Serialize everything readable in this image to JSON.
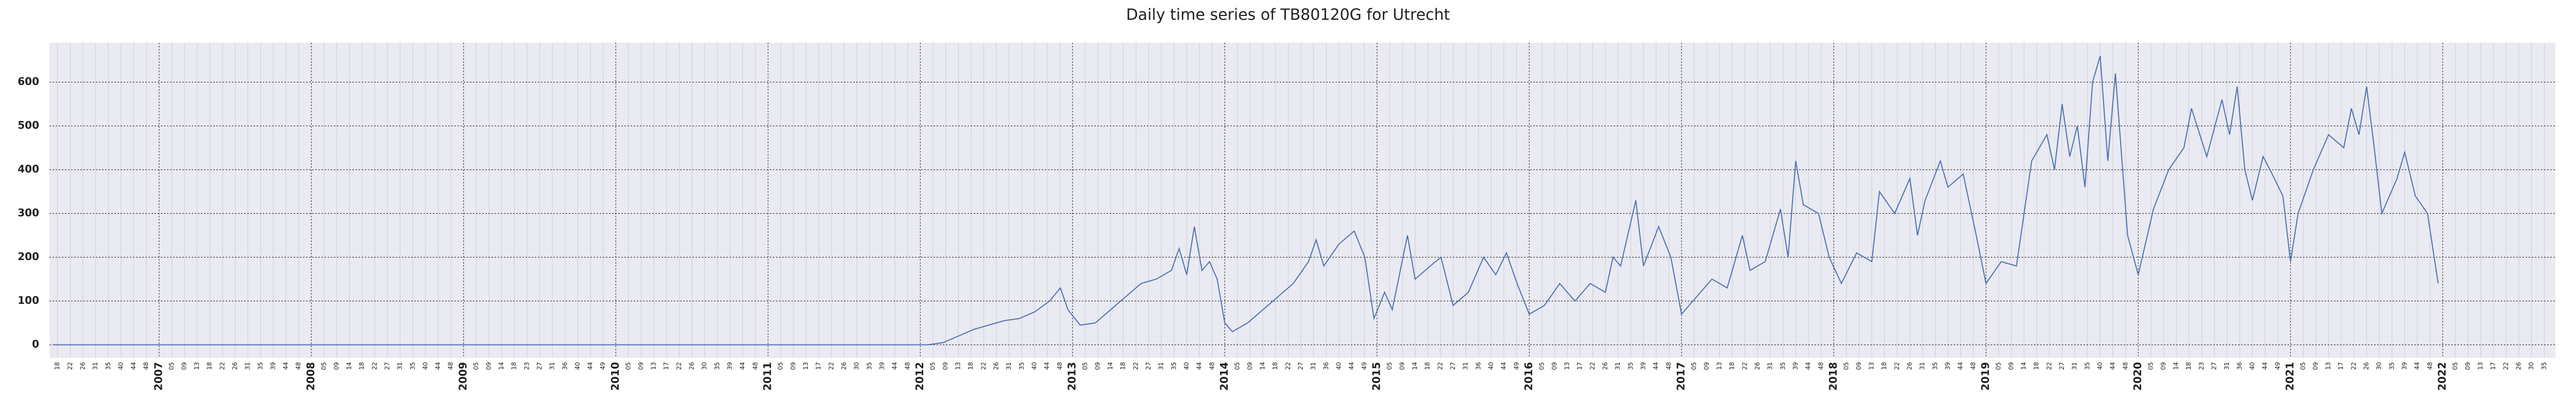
{
  "chart_data": {
    "type": "line",
    "title": "Daily time series of TB80120G for Utrecht",
    "x": [
      2006.3,
      2012.05,
      2012.15,
      2012.25,
      2012.35,
      2012.45,
      2012.55,
      2012.65,
      2012.75,
      2012.85,
      2012.92,
      2012.97,
      2013.05,
      2013.15,
      2013.25,
      2013.35,
      2013.45,
      2013.55,
      2013.65,
      2013.7,
      2013.75,
      2013.8,
      2013.85,
      2013.9,
      2013.95,
      2014.0,
      2014.05,
      2014.15,
      2014.25,
      2014.35,
      2014.45,
      2014.55,
      2014.6,
      2014.65,
      2014.75,
      2014.85,
      2014.92,
      2014.98,
      2015.05,
      2015.1,
      2015.2,
      2015.25,
      2015.35,
      2015.42,
      2015.5,
      2015.6,
      2015.7,
      2015.78,
      2015.85,
      2015.92,
      2016.0,
      2016.1,
      2016.2,
      2016.3,
      2016.4,
      2016.5,
      2016.55,
      2016.6,
      2016.7,
      2016.75,
      2016.85,
      2016.93,
      2017.0,
      2017.1,
      2017.2,
      2017.3,
      2017.4,
      2017.45,
      2017.55,
      2017.65,
      2017.7,
      2017.75,
      2017.8,
      2017.9,
      2017.97,
      2018.05,
      2018.15,
      2018.25,
      2018.3,
      2018.4,
      2018.5,
      2018.55,
      2018.6,
      2018.7,
      2018.75,
      2018.85,
      2018.93,
      2019.0,
      2019.1,
      2019.2,
      2019.3,
      2019.4,
      2019.45,
      2019.5,
      2019.55,
      2019.6,
      2019.65,
      2019.7,
      2019.75,
      2019.8,
      2019.85,
      2019.93,
      2020.0,
      2020.1,
      2020.2,
      2020.3,
      2020.35,
      2020.45,
      2020.55,
      2020.6,
      2020.65,
      2020.7,
      2020.75,
      2020.82,
      2020.88,
      2020.95,
      2021.0,
      2021.05,
      2021.15,
      2021.25,
      2021.35,
      2021.4,
      2021.45,
      2021.5,
      2021.55,
      2021.6,
      2021.7,
      2021.75,
      2021.82,
      2021.9,
      2021.97
    ],
    "series": [
      {
        "color": "#4c72b0",
        "values": [
          0,
          0,
          5,
          20,
          35,
          45,
          55,
          60,
          75,
          100,
          130,
          80,
          45,
          50,
          80,
          110,
          140,
          150,
          170,
          220,
          160,
          270,
          170,
          190,
          150,
          50,
          30,
          50,
          80,
          110,
          140,
          190,
          240,
          180,
          230,
          260,
          200,
          60,
          120,
          80,
          250,
          150,
          180,
          200,
          90,
          120,
          200,
          160,
          210,
          140,
          70,
          90,
          140,
          100,
          140,
          120,
          200,
          180,
          330,
          180,
          270,
          200,
          70,
          110,
          150,
          130,
          250,
          170,
          190,
          310,
          200,
          420,
          320,
          300,
          200,
          140,
          210,
          190,
          350,
          300,
          380,
          250,
          330,
          420,
          360,
          390,
          260,
          140,
          190,
          180,
          420,
          480,
          400,
          550,
          430,
          500,
          360,
          600,
          660,
          420,
          620,
          250,
          160,
          310,
          400,
          450,
          540,
          430,
          560,
          480,
          590,
          400,
          330,
          430,
          390,
          340,
          190,
          300,
          400,
          480,
          450,
          540,
          480,
          590,
          450,
          300,
          380,
          440,
          340,
          300,
          140
        ]
      }
    ],
    "xlim": [
      2006.28,
      2022.74
    ],
    "ylim": [
      -30,
      690
    ],
    "yticks": [
      0,
      100,
      200,
      300,
      400,
      500,
      600
    ],
    "xticks": [
      2007,
      2008,
      2009,
      2010,
      2011,
      2012,
      2013,
      2014,
      2015,
      2016,
      2017,
      2018,
      2019,
      2020,
      2021,
      2022
    ],
    "xminorticks": [
      {
        "value": 2006.333,
        "label": "18"
      },
      {
        "value": 2006.417,
        "label": "22"
      },
      {
        "value": 2006.5,
        "label": "26"
      },
      {
        "value": 2006.583,
        "label": "31"
      },
      {
        "value": 2006.667,
        "label": "35"
      },
      {
        "value": 2006.75,
        "label": "40"
      },
      {
        "value": 2006.833,
        "label": "44"
      },
      {
        "value": 2006.917,
        "label": "48"
      },
      {
        "value": 2007.083,
        "label": "05"
      },
      {
        "value": 2007.167,
        "label": "09"
      },
      {
        "value": 2007.25,
        "label": "13"
      },
      {
        "value": 2007.333,
        "label": "18"
      },
      {
        "value": 2007.417,
        "label": "22"
      },
      {
        "value": 2007.5,
        "label": "26"
      },
      {
        "value": 2007.583,
        "label": "31"
      },
      {
        "value": 2007.667,
        "label": "35"
      },
      {
        "value": 2007.75,
        "label": "39"
      },
      {
        "value": 2007.833,
        "label": "44"
      },
      {
        "value": 2007.917,
        "label": "48"
      },
      {
        "value": 2008.083,
        "label": "05"
      },
      {
        "value": 2008.167,
        "label": "09"
      },
      {
        "value": 2008.25,
        "label": "14"
      },
      {
        "value": 2008.333,
        "label": "18"
      },
      {
        "value": 2008.417,
        "label": "22"
      },
      {
        "value": 2008.5,
        "label": "27"
      },
      {
        "value": 2008.583,
        "label": "31"
      },
      {
        "value": 2008.667,
        "label": "35"
      },
      {
        "value": 2008.75,
        "label": "40"
      },
      {
        "value": 2008.833,
        "label": "44"
      },
      {
        "value": 2008.917,
        "label": "48"
      },
      {
        "value": 2009.083,
        "label": "05"
      },
      {
        "value": 2009.167,
        "label": "09"
      },
      {
        "value": 2009.25,
        "label": "14"
      },
      {
        "value": 2009.333,
        "label": "18"
      },
      {
        "value": 2009.417,
        "label": "23"
      },
      {
        "value": 2009.5,
        "label": "27"
      },
      {
        "value": 2009.583,
        "label": "31"
      },
      {
        "value": 2009.667,
        "label": "36"
      },
      {
        "value": 2009.75,
        "label": "40"
      },
      {
        "value": 2009.833,
        "label": "44"
      },
      {
        "value": 2009.917,
        "label": "49"
      },
      {
        "value": 2010.083,
        "label": "05"
      },
      {
        "value": 2010.167,
        "label": "09"
      },
      {
        "value": 2010.25,
        "label": "13"
      },
      {
        "value": 2010.333,
        "label": "17"
      },
      {
        "value": 2010.417,
        "label": "22"
      },
      {
        "value": 2010.5,
        "label": "26"
      },
      {
        "value": 2010.583,
        "label": "30"
      },
      {
        "value": 2010.667,
        "label": "35"
      },
      {
        "value": 2010.75,
        "label": "39"
      },
      {
        "value": 2010.833,
        "label": "44"
      },
      {
        "value": 2010.917,
        "label": "48"
      },
      {
        "value": 2011.083,
        "label": "05"
      },
      {
        "value": 2011.167,
        "label": "09"
      },
      {
        "value": 2011.25,
        "label": "13"
      },
      {
        "value": 2011.333,
        "label": "17"
      },
      {
        "value": 2011.417,
        "label": "22"
      },
      {
        "value": 2011.5,
        "label": "26"
      },
      {
        "value": 2011.583,
        "label": "30"
      },
      {
        "value": 2011.667,
        "label": "35"
      },
      {
        "value": 2011.75,
        "label": "39"
      },
      {
        "value": 2011.833,
        "label": "44"
      },
      {
        "value": 2011.917,
        "label": "48"
      },
      {
        "value": 2012.083,
        "label": "05"
      },
      {
        "value": 2012.167,
        "label": "09"
      },
      {
        "value": 2012.25,
        "label": "13"
      },
      {
        "value": 2012.333,
        "label": "18"
      },
      {
        "value": 2012.417,
        "label": "22"
      },
      {
        "value": 2012.5,
        "label": "26"
      },
      {
        "value": 2012.583,
        "label": "31"
      },
      {
        "value": 2012.667,
        "label": "35"
      },
      {
        "value": 2012.75,
        "label": "40"
      },
      {
        "value": 2012.833,
        "label": "44"
      },
      {
        "value": 2012.917,
        "label": "48"
      },
      {
        "value": 2013.083,
        "label": "05"
      },
      {
        "value": 2013.167,
        "label": "09"
      },
      {
        "value": 2013.25,
        "label": "14"
      },
      {
        "value": 2013.333,
        "label": "18"
      },
      {
        "value": 2013.417,
        "label": "22"
      },
      {
        "value": 2013.5,
        "label": "27"
      },
      {
        "value": 2013.583,
        "label": "31"
      },
      {
        "value": 2013.667,
        "label": "35"
      },
      {
        "value": 2013.75,
        "label": "40"
      },
      {
        "value": 2013.833,
        "label": "44"
      },
      {
        "value": 2013.917,
        "label": "48"
      },
      {
        "value": 2014.083,
        "label": "05"
      },
      {
        "value": 2014.167,
        "label": "09"
      },
      {
        "value": 2014.25,
        "label": "14"
      },
      {
        "value": 2014.333,
        "label": "18"
      },
      {
        "value": 2014.417,
        "label": "22"
      },
      {
        "value": 2014.5,
        "label": "27"
      },
      {
        "value": 2014.583,
        "label": "31"
      },
      {
        "value": 2014.667,
        "label": "36"
      },
      {
        "value": 2014.75,
        "label": "40"
      },
      {
        "value": 2014.833,
        "label": "44"
      },
      {
        "value": 2014.917,
        "label": "49"
      },
      {
        "value": 2015.083,
        "label": "05"
      },
      {
        "value": 2015.167,
        "label": "09"
      },
      {
        "value": 2015.25,
        "label": "14"
      },
      {
        "value": 2015.333,
        "label": "18"
      },
      {
        "value": 2015.417,
        "label": "22"
      },
      {
        "value": 2015.5,
        "label": "27"
      },
      {
        "value": 2015.583,
        "label": "31"
      },
      {
        "value": 2015.667,
        "label": "36"
      },
      {
        "value": 2015.75,
        "label": "40"
      },
      {
        "value": 2015.833,
        "label": "44"
      },
      {
        "value": 2015.917,
        "label": "49"
      },
      {
        "value": 2016.083,
        "label": "05"
      },
      {
        "value": 2016.167,
        "label": "09"
      },
      {
        "value": 2016.25,
        "label": "13"
      },
      {
        "value": 2016.333,
        "label": "17"
      },
      {
        "value": 2016.417,
        "label": "22"
      },
      {
        "value": 2016.5,
        "label": "26"
      },
      {
        "value": 2016.583,
        "label": "31"
      },
      {
        "value": 2016.667,
        "label": "35"
      },
      {
        "value": 2016.75,
        "label": "39"
      },
      {
        "value": 2016.833,
        "label": "44"
      },
      {
        "value": 2016.917,
        "label": "48"
      },
      {
        "value": 2017.083,
        "label": "05"
      },
      {
        "value": 2017.167,
        "label": "09"
      },
      {
        "value": 2017.25,
        "label": "13"
      },
      {
        "value": 2017.333,
        "label": "18"
      },
      {
        "value": 2017.417,
        "label": "22"
      },
      {
        "value": 2017.5,
        "label": "26"
      },
      {
        "value": 2017.583,
        "label": "31"
      },
      {
        "value": 2017.667,
        "label": "35"
      },
      {
        "value": 2017.75,
        "label": "39"
      },
      {
        "value": 2017.833,
        "label": "44"
      },
      {
        "value": 2017.917,
        "label": "48"
      },
      {
        "value": 2018.083,
        "label": "05"
      },
      {
        "value": 2018.167,
        "label": "09"
      },
      {
        "value": 2018.25,
        "label": "13"
      },
      {
        "value": 2018.333,
        "label": "18"
      },
      {
        "value": 2018.417,
        "label": "22"
      },
      {
        "value": 2018.5,
        "label": "26"
      },
      {
        "value": 2018.583,
        "label": "31"
      },
      {
        "value": 2018.667,
        "label": "35"
      },
      {
        "value": 2018.75,
        "label": "39"
      },
      {
        "value": 2018.833,
        "label": "44"
      },
      {
        "value": 2018.917,
        "label": "48"
      },
      {
        "value": 2019.083,
        "label": "05"
      },
      {
        "value": 2019.167,
        "label": "09"
      },
      {
        "value": 2019.25,
        "label": "14"
      },
      {
        "value": 2019.333,
        "label": "18"
      },
      {
        "value": 2019.417,
        "label": "22"
      },
      {
        "value": 2019.5,
        "label": "27"
      },
      {
        "value": 2019.583,
        "label": "31"
      },
      {
        "value": 2019.667,
        "label": "35"
      },
      {
        "value": 2019.75,
        "label": "40"
      },
      {
        "value": 2019.833,
        "label": "44"
      },
      {
        "value": 2019.917,
        "label": "48"
      },
      {
        "value": 2020.083,
        "label": "05"
      },
      {
        "value": 2020.167,
        "label": "09"
      },
      {
        "value": 2020.25,
        "label": "14"
      },
      {
        "value": 2020.333,
        "label": "18"
      },
      {
        "value": 2020.417,
        "label": "23"
      },
      {
        "value": 2020.5,
        "label": "27"
      },
      {
        "value": 2020.583,
        "label": "31"
      },
      {
        "value": 2020.667,
        "label": "36"
      },
      {
        "value": 2020.75,
        "label": "40"
      },
      {
        "value": 2020.833,
        "label": "44"
      },
      {
        "value": 2020.917,
        "label": "49"
      },
      {
        "value": 2021.083,
        "label": "05"
      },
      {
        "value": 2021.167,
        "label": "09"
      },
      {
        "value": 2021.25,
        "label": "13"
      },
      {
        "value": 2021.333,
        "label": "17"
      },
      {
        "value": 2021.417,
        "label": "22"
      },
      {
        "value": 2021.5,
        "label": "26"
      },
      {
        "value": 2021.583,
        "label": "30"
      },
      {
        "value": 2021.667,
        "label": "35"
      },
      {
        "value": 2021.75,
        "label": "39"
      },
      {
        "value": 2021.833,
        "label": "44"
      },
      {
        "value": 2021.917,
        "label": "48"
      },
      {
        "value": 2022.083,
        "label": "05"
      },
      {
        "value": 2022.167,
        "label": "09"
      },
      {
        "value": 2022.25,
        "label": "13"
      },
      {
        "value": 2022.333,
        "label": "17"
      },
      {
        "value": 2022.417,
        "label": "22"
      },
      {
        "value": 2022.5,
        "label": "26"
      },
      {
        "value": 2022.583,
        "label": "30"
      },
      {
        "value": 2022.667,
        "label": "35"
      }
    ],
    "grid": true
  }
}
